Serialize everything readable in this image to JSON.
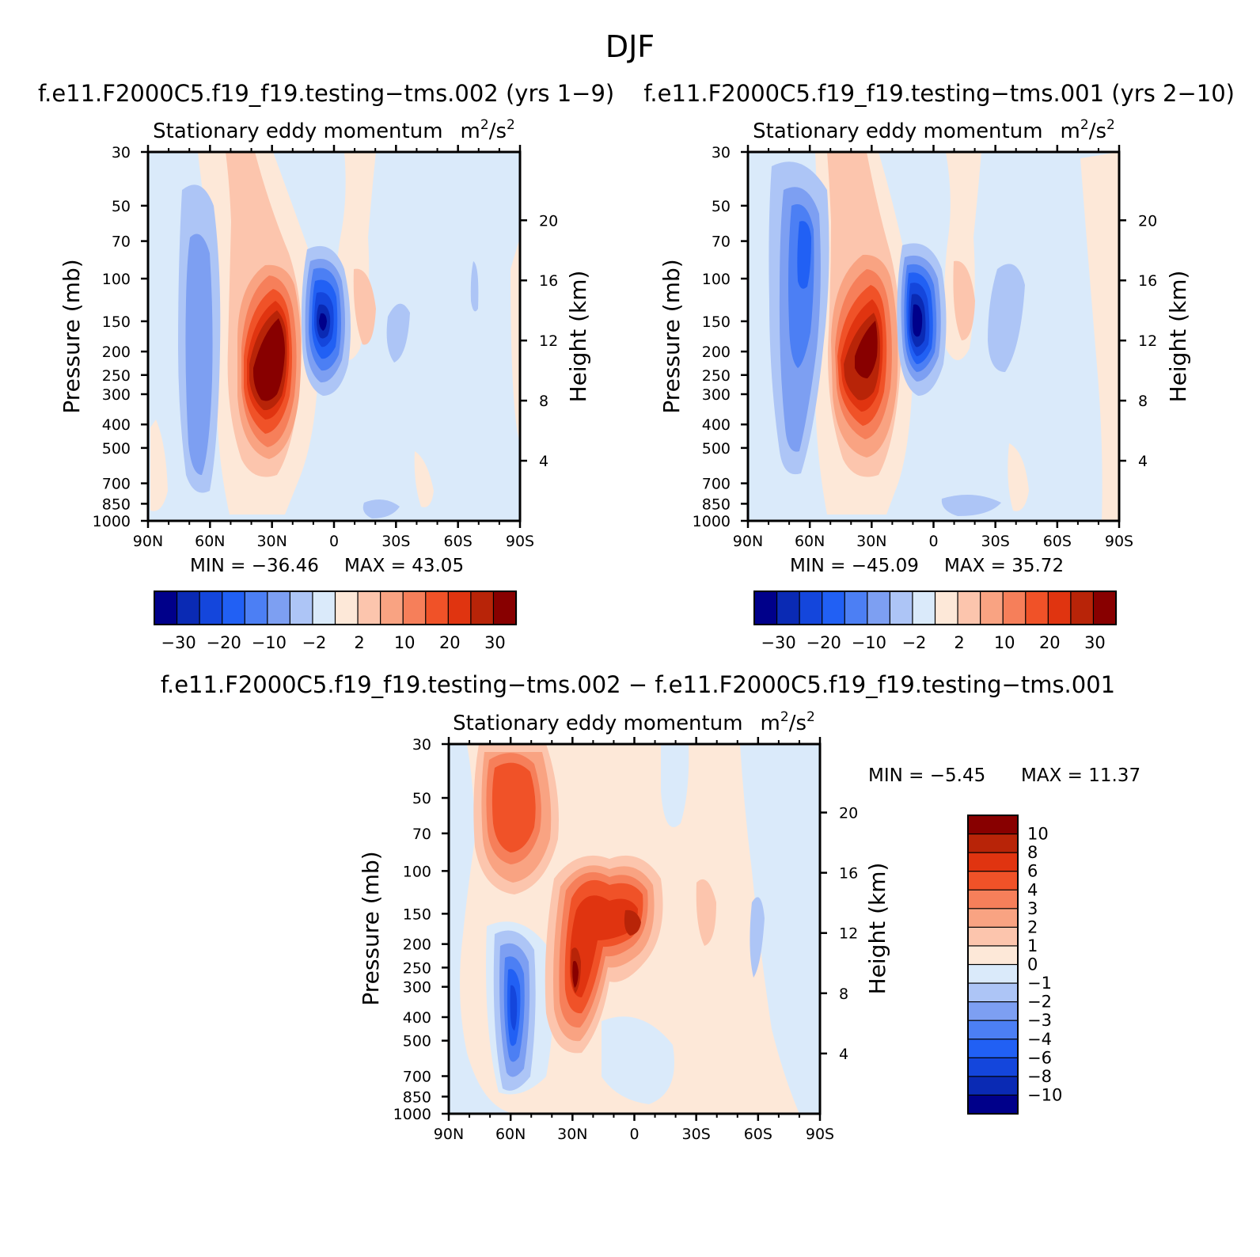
{
  "figure": {
    "title": "DJF",
    "diff_title": "f.e11.F2000C5.f19_f19.testing−tms.002 − f.e11.F2000C5.f19_f19.testing−tms.001"
  },
  "colors": {
    "main_scale": [
      "#00008a",
      "#0a2ab4",
      "#1446dc",
      "#2160f4",
      "#4c7ff4",
      "#7d9ff2",
      "#adc5f6",
      "#daeafa",
      "#fde8d8",
      "#fcc5ad",
      "#f9a382",
      "#f67f5a",
      "#f05228",
      "#e03410",
      "#b82408",
      "#880000"
    ],
    "diff_scale": [
      "#00008a",
      "#0a2ab4",
      "#1446dc",
      "#2160f4",
      "#4c7ff4",
      "#7d9ff2",
      "#adc5f6",
      "#daeafa",
      "#fde8d8",
      "#fcc5ad",
      "#f9a382",
      "#f67f5a",
      "#f05228",
      "#e03410",
      "#b82408",
      "#880000"
    ]
  },
  "chart_data": [
    {
      "type": "heatmap",
      "panel": "top-left",
      "case_title": "f.e11.F2000C5.f19_f19.testing−tms.002 (yrs 1−9)",
      "title": "Stationary eddy momentum",
      "units_base": "m",
      "units_mid": "/s",
      "units_sup": "2",
      "xlabel": "",
      "ylabel": "Pressure (mb)",
      "y2label": "Height (km)",
      "x_ticks": [
        "90N",
        "60N",
        "30N",
        "0",
        "30S",
        "60S",
        "90S"
      ],
      "y_ticks": [
        30,
        50,
        70,
        100,
        150,
        200,
        250,
        300,
        400,
        500,
        700,
        850,
        1000
      ],
      "y2_ticks": [
        4,
        8,
        12,
        16,
        20
      ],
      "min_label": "MIN =  −36.46",
      "max_label": "MAX =   43.05",
      "levels": [
        "−30",
        "−20",
        "−10",
        "−2",
        "2",
        "10",
        "20",
        "30"
      ],
      "extrema": [
        {
          "lat": 30,
          "p": 250,
          "value": 43.05
        },
        {
          "lat": 5,
          "p": 150,
          "value": -36.46
        }
      ]
    },
    {
      "type": "heatmap",
      "panel": "top-right",
      "case_title": "f.e11.F2000C5.f19_f19.testing−tms.001 (yrs 2−10)",
      "title": "Stationary eddy momentum",
      "units_base": "m",
      "units_mid": "/s",
      "units_sup": "2",
      "ylabel": "Pressure (mb)",
      "y2label": "Height (km)",
      "x_ticks": [
        "90N",
        "60N",
        "30N",
        "0",
        "30S",
        "60S",
        "90S"
      ],
      "y_ticks": [
        30,
        50,
        70,
        100,
        150,
        200,
        250,
        300,
        400,
        500,
        700,
        850,
        1000
      ],
      "y2_ticks": [
        4,
        8,
        12,
        16,
        20
      ],
      "min_label": "MIN =  −45.09",
      "max_label": "MAX =   35.72",
      "levels": [
        "−30",
        "−20",
        "−10",
        "−2",
        "2",
        "10",
        "20",
        "30"
      ],
      "extrema": [
        {
          "lat": 28,
          "p": 200,
          "value": 35.72
        },
        {
          "lat": 5,
          "p": 150,
          "value": -45.09
        }
      ]
    },
    {
      "type": "heatmap",
      "panel": "bottom",
      "title": "Stationary eddy momentum",
      "units_base": "m",
      "units_mid": "/s",
      "units_sup": "2",
      "ylabel": "Pressure (mb)",
      "y2label": "Height (km)",
      "x_ticks": [
        "90N",
        "60N",
        "30N",
        "0",
        "30S",
        "60S",
        "90S"
      ],
      "y_ticks": [
        30,
        50,
        70,
        100,
        150,
        200,
        250,
        300,
        400,
        500,
        700,
        850,
        1000
      ],
      "y2_ticks": [
        4,
        8,
        12,
        16,
        20
      ],
      "min_label": "MIN =   −5.45",
      "max_label": "MAX =   11.37",
      "levels": [
        "10",
        "8",
        "6",
        "4",
        "3",
        "2",
        "1",
        "0",
        "−1",
        "−2",
        "−3",
        "−4",
        "−6",
        "−8",
        "−10"
      ],
      "extrema": [
        {
          "lat": 30,
          "p": 300,
          "value": 11.37
        },
        {
          "lat": 60,
          "p": 350,
          "value": -5.45
        }
      ]
    }
  ]
}
